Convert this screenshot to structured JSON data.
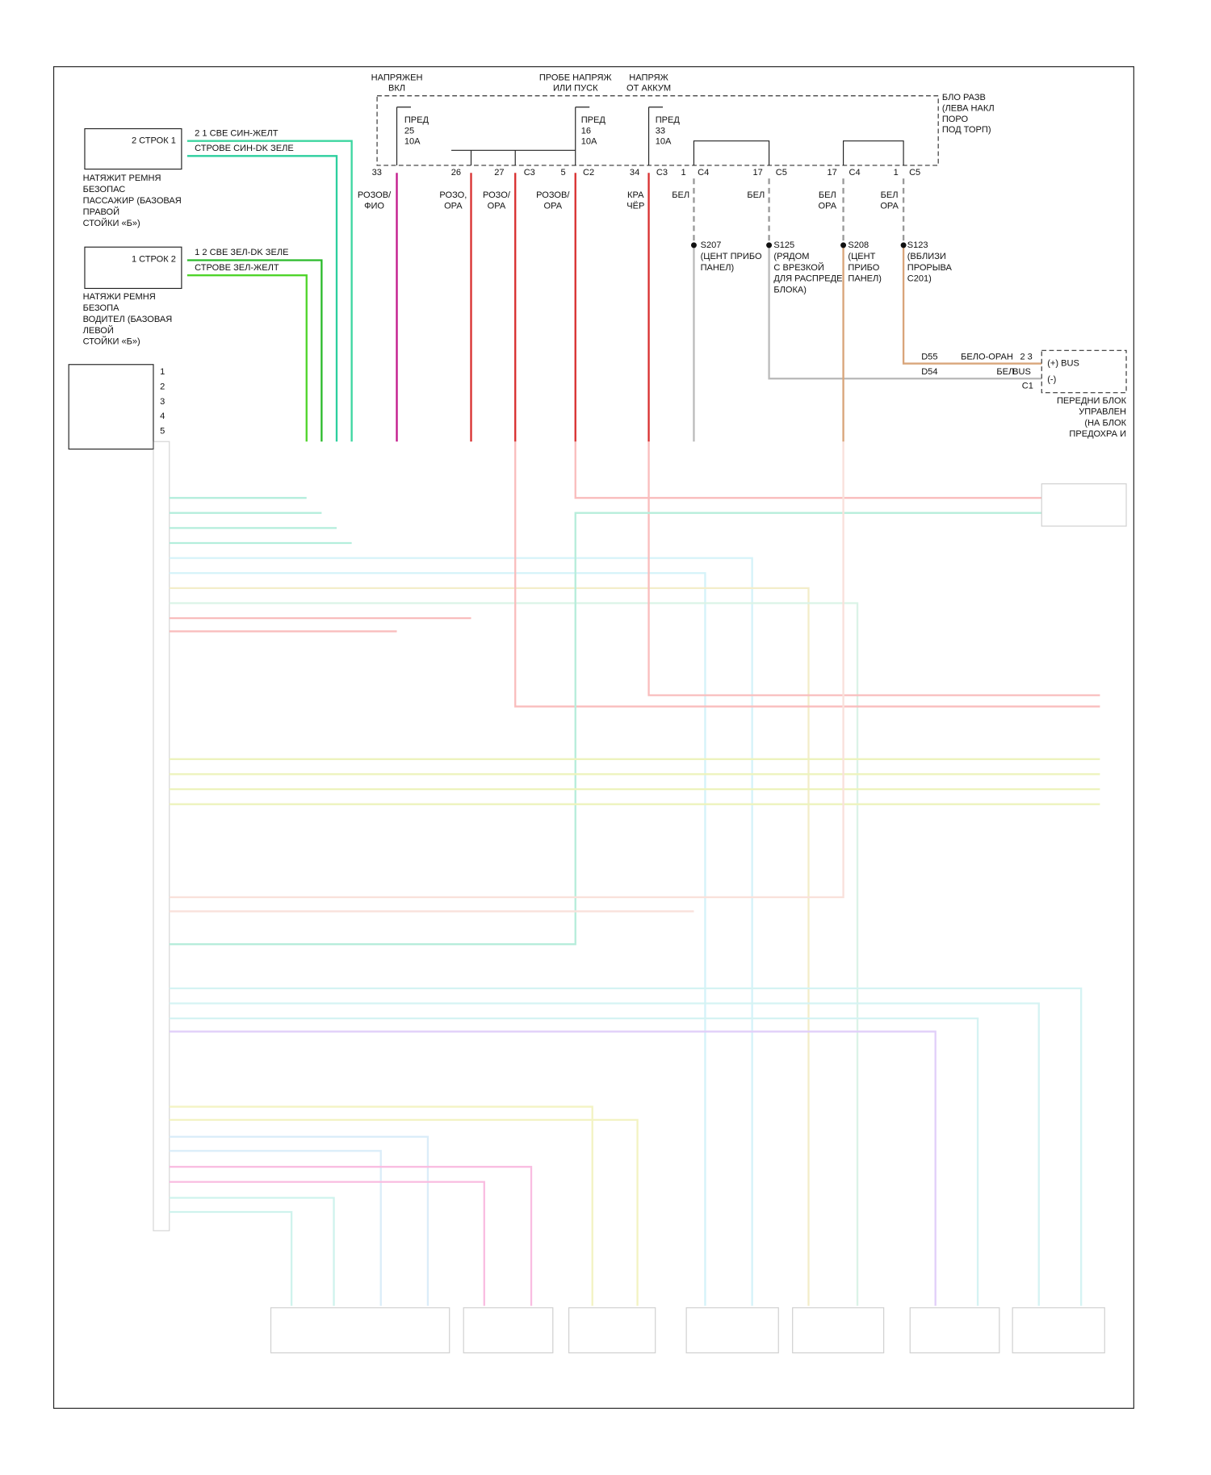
{
  "power_sources": [
    [
      "НАПРЯЖЕН",
      "ВКЛ"
    ],
    [
      "ПРОБЕ НАПРЯЖ",
      "ИЛИ ПУСК"
    ],
    [
      "НАПРЯЖ",
      "ОТ АККУМ"
    ]
  ],
  "fuse_block": {
    "label": [
      "БЛО РАЗВ",
      "(ЛЕВА НАКЛ",
      "ПОРО",
      "ПОД ТОРП)"
    ],
    "fuses": [
      [
        "ПРЕД",
        "25",
        "10A"
      ],
      [
        "ПРЕД",
        "16",
        "10A"
      ],
      [
        "ПРЕД",
        "33",
        "10A"
      ]
    ]
  },
  "pins": [
    "33",
    "26",
    "27",
    "C3",
    "5",
    "C2",
    "34",
    "C3",
    "1",
    "C4",
    "17",
    "C5",
    "17",
    "C4",
    "1",
    "C5"
  ],
  "wire_colors": [
    [
      "РОЗОВ/",
      "ФИО"
    ],
    [
      "РОЗО,",
      "ОРА"
    ],
    [
      "РОЗО/",
      "ОРА"
    ],
    [
      "РОЗОВ/",
      "ОРА"
    ],
    [
      "КРА",
      "ЧЁР"
    ],
    [
      "БЕЛ"
    ],
    [
      "БЕЛ"
    ],
    [
      "БЕЛ",
      "ОРА"
    ],
    [
      "БЕЛ",
      "ОРА"
    ]
  ],
  "splices": [
    [
      "S207",
      "(ЦЕНТ ПРИБО",
      "ПАНЕЛ)"
    ],
    [
      "S125",
      "(РЯДОМ",
      "С ВРЕЗКОЙ",
      "ДЛЯ РАСПРЕДЕ",
      "БЛОКА)"
    ],
    [
      "S208",
      "(ЦЕНТ",
      "ПРИБО",
      "ПАНЕЛ)"
    ],
    [
      "S123",
      "(ВБЛИЗИ",
      "ПРОРЫВА",
      "C201)"
    ]
  ],
  "bus": {
    "texts": [
      "D55",
      "БЕЛО-ОРАН",
      "2 3",
      "(+) BUS",
      "D54",
      "БЕЛ",
      "BUS",
      "(-)",
      "C1"
    ],
    "module_label": [
      "ПЕРЕДНИ БЛОК",
      "УПРАВЛЕН",
      "(НА БЛОК",
      "ПРЕДОХРА И"
    ]
  },
  "tensioners": [
    {
      "connector": "2 СТРОК 1",
      "wires": [
        "2 1  СВЕ СИН-ЖЕЛТ",
        "СТРОВЕ СИН-DK ЗЕЛЕ"
      ],
      "label": [
        "НАТЯЖИТ РЕМНЯ",
        "БЕЗОПАС",
        "ПАССАЖИР (БАЗОВАЯ",
        "ПРАВОЙ",
        "СТОЙКИ «Б»)"
      ]
    },
    {
      "connector": "1 СТРОК 2",
      "wires": [
        "1 2  СВЕ ЗЕЛ-DK ЗЕЛЕ",
        "СТРОВЕ ЗЕЛ-ЖЕЛТ"
      ],
      "label": [
        "НАТЯЖИ РЕМНЯ",
        "БЕЗОПА",
        "ВОДИТЕЛ (БАЗОВАЯ",
        "ЛЕВОЙ",
        "СТОЙКИ «Б»)"
      ]
    }
  ],
  "module_pins": [
    "1",
    "2",
    "3",
    "4",
    "5"
  ]
}
